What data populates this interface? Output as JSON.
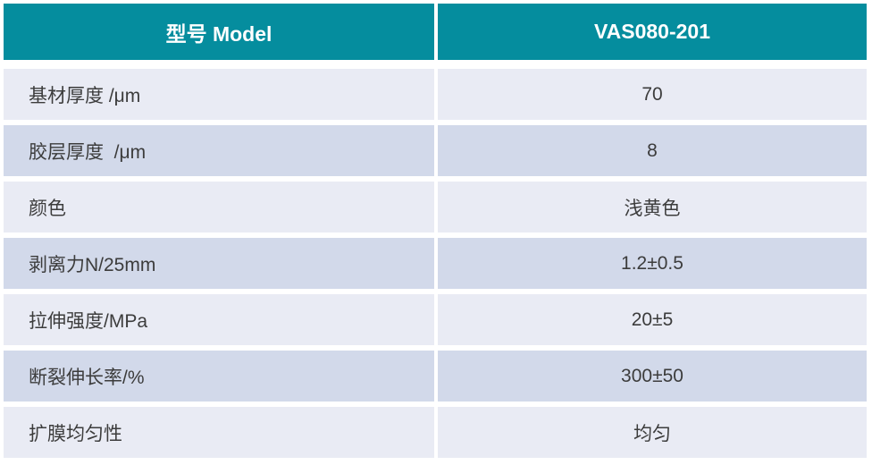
{
  "colors": {
    "header_bg": "#058D9E",
    "row_dark": "#D2D9EA",
    "row_light": "#E9EBF4",
    "header_text": "#FFFFFF",
    "body_text": "#3C3C3C"
  },
  "table": {
    "header": {
      "label": "型号 Model",
      "value": "VAS080-201"
    },
    "rows": [
      {
        "label": "基材厚度 /μm",
        "value": "70"
      },
      {
        "label": "胶层厚度  /μm",
        "value": "8"
      },
      {
        "label": "颜色",
        "value": "浅黄色"
      },
      {
        "label": "剥离力N/25mm",
        "value": "1.2±0.5"
      },
      {
        "label": "拉伸强度/MPa",
        "value": "20±5"
      },
      {
        "label": "断裂伸长率/%",
        "value": "300±50"
      },
      {
        "label": "扩膜均匀性",
        "value": "均匀"
      }
    ]
  }
}
